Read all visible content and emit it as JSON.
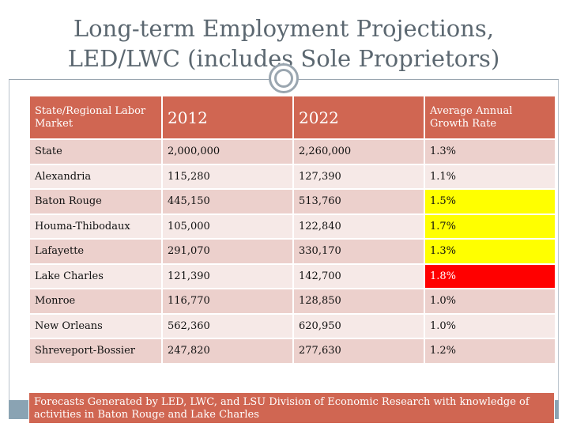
{
  "title": {
    "line1": "Long-term Employment Projections,",
    "line2": "LED/LWC (includes Sole Proprietors)"
  },
  "table": {
    "headers": [
      "State/Regional Labor Market",
      "2012",
      "2022",
      "Average Annual Growth Rate"
    ],
    "rows": [
      [
        "State",
        "2,000,000",
        "2,260,000",
        "1.3%"
      ],
      [
        "Alexandria",
        "115,280",
        "127,390",
        "1.1%"
      ],
      [
        "Baton Rouge",
        "445,150",
        "513,760",
        "1.5%"
      ],
      [
        "Houma-Thibodaux",
        "105,000",
        "122,840",
        "1.7%"
      ],
      [
        "Lafayette",
        "291,070",
        "330,170",
        "1.3%"
      ],
      [
        "Lake Charles",
        "121,390",
        "142,700",
        "1.8%"
      ],
      [
        "Monroe",
        "116,770",
        "128,850",
        "1.0%"
      ],
      [
        "New Orleans",
        "562,360",
        "620,950",
        "1.0%"
      ],
      [
        "Shreveport-Bossier",
        "247,820",
        "277,630",
        "1.2%"
      ]
    ]
  },
  "note": "Forecasts Generated by LED, LWC, and LSU Division of Economic Research with knowledge of activities in Baton Rouge and Lake Charles",
  "colors": {
    "header": "#d06652",
    "highlight_yellow": "#ffff00",
    "highlight_red": "#ff0000"
  }
}
